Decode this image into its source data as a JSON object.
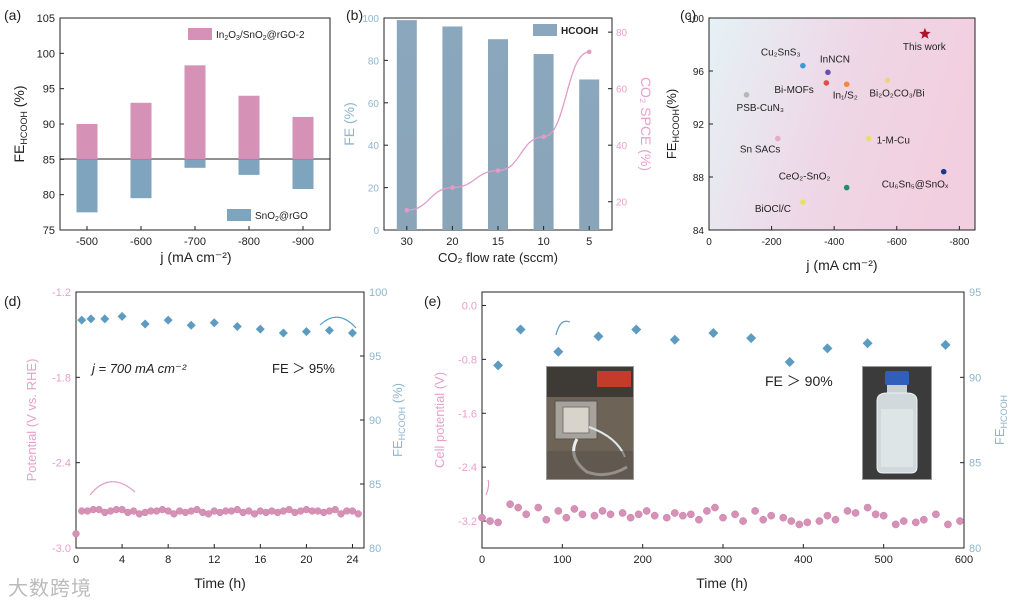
{
  "colors": {
    "pink": "#d691b7",
    "blue": "#7ea4be",
    "blueBar": "#8aa7bd",
    "curve": "#e59ac8",
    "star": "#b0102c",
    "axisPink": "#e8a0cc",
    "axisBlue": "#8fb5cc"
  },
  "watermark": "大数跨境",
  "chart_data": [
    {
      "panel": "(a)",
      "type": "bar",
      "categories": [
        "-500",
        "-600",
        "-700",
        "-800",
        "-900"
      ],
      "series": [
        {
          "name": "In2O3/SnO2@rGO-2",
          "values": [
            90,
            93,
            98.3,
            94,
            91
          ]
        },
        {
          "name": "SnO2@rGO",
          "values": [
            77.5,
            79.5,
            83.8,
            82.8,
            80.8
          ]
        }
      ],
      "baseline": 85,
      "ylim": [
        75,
        105
      ],
      "yticks": [
        "75",
        "80",
        "85",
        "90",
        "95",
        "100",
        "105"
      ],
      "xlabel": "j (mA cm⁻²)",
      "ylabel": "FE",
      "ylabel_sub": "HCOOH",
      "ylabel_unit": " (%)",
      "legend_top": {
        "pre": "In",
        "s1": "2",
        "mid": "O",
        "s2": "3",
        "rest": "/SnO",
        "s3": "2",
        "end": "@rGO-2"
      },
      "legend_bottom": {
        "pre": "SnO",
        "s1": "2",
        "rest": "@rGO"
      }
    },
    {
      "panel": "(b)",
      "type": "bar",
      "categories": [
        "30",
        "20",
        "15",
        "10",
        "5"
      ],
      "series": [
        {
          "name": "HCOOH",
          "values": [
            99,
            96,
            90,
            83,
            71
          ]
        },
        {
          "name": "CO2 SPCE",
          "values": [
            17,
            25,
            31,
            43,
            73
          ],
          "axis": "right",
          "kind": "line"
        }
      ],
      "ylim": [
        0,
        100
      ],
      "yticks": [
        "0",
        "20",
        "40",
        "60",
        "80",
        "100"
      ],
      "y2lim": [
        10,
        85
      ],
      "y2ticks": [
        "20",
        "40",
        "60",
        "80"
      ],
      "xlabel": "CO₂ flow rate (sccm)",
      "ylabel": "FE (%)",
      "y2label": "CO₂ SPCE (%)",
      "legend": "HCOOH"
    },
    {
      "panel": "(c)",
      "type": "scatter",
      "xlim": [
        0,
        -850
      ],
      "ylim": [
        84,
        100
      ],
      "xticks": [
        "0",
        "-200",
        "-400",
        "-600",
        "-800"
      ],
      "yticks": [
        "84",
        "88",
        "92",
        "96",
        "100"
      ],
      "xlabel": "j (mA cm⁻²)",
      "ylabel": "FE",
      "ylabel_sub": "HCOOH",
      "ylabel_unit": "(%)",
      "points": [
        {
          "label": "This work",
          "x": -690,
          "y": 98.8,
          "color": "#b0102c",
          "marker": "star"
        },
        {
          "label": "Cu₂SnS₃",
          "x": -300,
          "y": 96.4,
          "color": "#3a9ad8"
        },
        {
          "label": "InNCN",
          "x": -380,
          "y": 95.9,
          "color": "#6b4fb0"
        },
        {
          "label": "Bi-MOFs",
          "x": -375,
          "y": 95.1,
          "color": "#e04c50"
        },
        {
          "label": "In₁/S₂",
          "x": -440,
          "y": 95.0,
          "color": "#f08a3a"
        },
        {
          "label": "Bi₂O₂CO₃/Bi",
          "x": -570,
          "y": 95.3,
          "color": "#f3d08a"
        },
        {
          "label": "PSB-CuN₃",
          "x": -120,
          "y": 94.2,
          "color": "#b8b8b8"
        },
        {
          "label": "1-M-Cu",
          "x": -510,
          "y": 90.9,
          "color": "#e8dc6a"
        },
        {
          "label": "Sn SACs",
          "x": -220,
          "y": 90.9,
          "color": "#e8a8c8"
        },
        {
          "label": "Cu₆Sn₅@SnOₓ",
          "x": -750,
          "y": 88.4,
          "color": "#1a3a8a"
        },
        {
          "label": "CeO₂-SnO₂",
          "x": -440,
          "y": 87.2,
          "color": "#1e9070"
        },
        {
          "label": "BiOCl/C",
          "x": -300,
          "y": 86.1,
          "color": "#e8e060"
        }
      ]
    },
    {
      "panel": "(d)",
      "type": "scatter",
      "xlim": [
        0,
        25
      ],
      "xticks": [
        "0",
        "4",
        "8",
        "12",
        "16",
        "20",
        "24"
      ],
      "ylim": [
        -3.0,
        -1.2
      ],
      "yticks": [
        "-3.0",
        "-2.4",
        "-1.8",
        "-1.2"
      ],
      "y2lim": [
        80,
        100
      ],
      "y2ticks": [
        "80",
        "85",
        "90",
        "95",
        "100"
      ],
      "xlabel": "Time (h)",
      "ylabel": "Potential (V vs. RHE)",
      "y2label": "FE",
      "y2label_sub": "HCOOH",
      "y2label_unit": " (%)",
      "annotation_current": "j = 700 mA cm⁻²",
      "annotation_fe": "FE ＞ 95%",
      "potential": {
        "x": [
          0,
          0.5,
          1,
          1.5,
          2,
          2.5,
          3,
          3.5,
          4,
          4.5,
          5,
          5.5,
          6,
          6.5,
          7,
          7.5,
          8,
          8.5,
          9,
          9.5,
          10,
          10.5,
          11,
          11.5,
          12,
          12.5,
          13,
          13.5,
          14,
          14.5,
          15,
          15.5,
          16,
          16.5,
          17,
          17.5,
          18,
          18.5,
          19,
          19.5,
          20,
          20.5,
          21,
          21.5,
          22,
          22.5,
          23,
          23.5,
          24,
          24.5
        ],
        "y": [
          -2.9,
          -2.74,
          -2.74,
          -2.73,
          -2.73,
          -2.75,
          -2.74,
          -2.73,
          -2.73,
          -2.75,
          -2.74,
          -2.76,
          -2.75,
          -2.74,
          -2.74,
          -2.73,
          -2.74,
          -2.76,
          -2.74,
          -2.75,
          -2.74,
          -2.73,
          -2.75,
          -2.76,
          -2.74,
          -2.75,
          -2.74,
          -2.74,
          -2.73,
          -2.75,
          -2.74,
          -2.76,
          -2.74,
          -2.75,
          -2.74,
          -2.75,
          -2.74,
          -2.73,
          -2.75,
          -2.74,
          -2.73,
          -2.74,
          -2.74,
          -2.75,
          -2.74,
          -2.73,
          -2.76,
          -2.74,
          -2.74,
          -2.76
        ]
      },
      "fe": {
        "x": [
          0.5,
          1.3,
          2.5,
          4.0,
          6.0,
          8.0,
          10.0,
          12.0,
          14.0,
          16.0,
          18.0,
          20.0,
          22.0,
          24.0
        ],
        "y": [
          97.8,
          97.9,
          97.9,
          98.1,
          97.5,
          97.8,
          97.4,
          97.6,
          97.3,
          97.1,
          96.8,
          96.9,
          97.0,
          96.8
        ]
      }
    },
    {
      "panel": "(e)",
      "type": "scatter",
      "xlim": [
        0,
        600
      ],
      "xticks": [
        "0",
        "100",
        "200",
        "300",
        "400",
        "500",
        "600"
      ],
      "ylim": [
        -3.6,
        0.2
      ],
      "yticks": [
        "-3.2",
        "-2.4",
        "-1.6",
        "-0.8",
        "0.0"
      ],
      "y2lim": [
        80,
        95
      ],
      "y2ticks": [
        "80",
        "85",
        "90",
        "95"
      ],
      "xlabel": "Time (h)",
      "ylabel": "Cell potential (V)",
      "y2label": "FE",
      "y2label_sub": "HCOOH",
      "annotation_fe": "FE ＞ 90%",
      "potential": {
        "x": [
          0,
          10,
          20,
          35,
          45,
          55,
          70,
          80,
          95,
          105,
          115,
          125,
          140,
          150,
          160,
          175,
          185,
          195,
          205,
          215,
          230,
          240,
          250,
          260,
          270,
          280,
          290,
          300,
          315,
          325,
          340,
          350,
          360,
          375,
          385,
          395,
          405,
          420,
          430,
          440,
          455,
          465,
          480,
          490,
          500,
          515,
          525,
          540,
          550,
          565,
          580,
          595
        ],
        "y": [
          -3.15,
          -3.2,
          -3.22,
          -2.95,
          -3.0,
          -3.1,
          -3.0,
          -3.18,
          -3.05,
          -3.15,
          -3.02,
          -3.1,
          -3.12,
          -3.05,
          -3.1,
          -3.08,
          -3.15,
          -3.1,
          -3.05,
          -3.12,
          -3.15,
          -3.08,
          -3.12,
          -3.1,
          -3.18,
          -3.05,
          -3.0,
          -3.15,
          -3.1,
          -3.2,
          -3.05,
          -3.18,
          -3.12,
          -3.15,
          -3.2,
          -3.25,
          -3.22,
          -3.2,
          -3.12,
          -3.18,
          -3.05,
          -3.08,
          -3.0,
          -3.1,
          -3.12,
          -3.25,
          -3.2,
          -3.22,
          -3.18,
          -3.1,
          -3.25,
          -3.2
        ]
      },
      "fe": {
        "x": [
          20,
          48,
          95,
          145,
          192,
          240,
          288,
          335,
          383,
          430,
          480,
          577
        ],
        "y": [
          90.7,
          92.8,
          91.5,
          92.4,
          92.8,
          92.2,
          92.6,
          92.3,
          90.9,
          91.7,
          92.0,
          91.9
        ]
      }
    }
  ]
}
